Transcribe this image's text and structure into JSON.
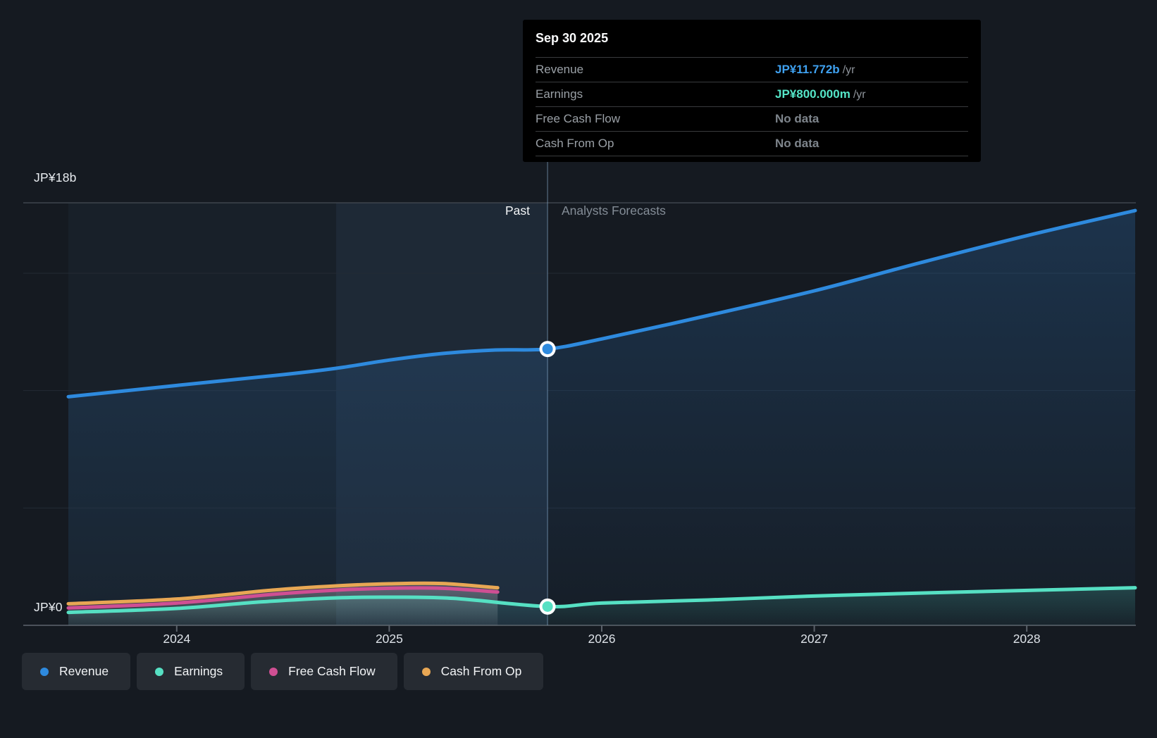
{
  "tooltip": {
    "date": "Sep 30 2025",
    "rows": [
      {
        "label": "Revenue",
        "value": "JP¥11.772b",
        "suffix": "/yr",
        "color": "#3fa1f0"
      },
      {
        "label": "Earnings",
        "value": "JP¥800.000m",
        "suffix": "/yr",
        "color": "#55e6c8"
      },
      {
        "label": "Free Cash Flow",
        "value": "No data",
        "suffix": "",
        "color": "#7e858c"
      },
      {
        "label": "Cash From Op",
        "value": "No data",
        "suffix": "",
        "color": "#7e858c"
      }
    ]
  },
  "axis": {
    "y_top_label": "JP¥18b",
    "y_zero_label": "JP¥0",
    "x_ticks": [
      "2024",
      "2025",
      "2026",
      "2027",
      "2028"
    ]
  },
  "labels": {
    "past": "Past",
    "forecast": "Analysts Forecasts"
  },
  "legend": [
    {
      "label": "Revenue",
      "color": "#2e8ade"
    },
    {
      "label": "Earnings",
      "color": "#56e0c3"
    },
    {
      "label": "Free Cash Flow",
      "color": "#cf4f93"
    },
    {
      "label": "Cash From Op",
      "color": "#e8a754"
    }
  ],
  "chart_data": {
    "type": "area",
    "title": "",
    "x_unit": "year",
    "x_range": [
      2023.49,
      2028.51
    ],
    "ylim": [
      0,
      18
    ],
    "y_currency": "JP¥b",
    "gridline_values": [
      18,
      15,
      10,
      5,
      0
    ],
    "x_tick_years": [
      2024,
      2025,
      2026,
      2027,
      2028
    ],
    "divider_x": 2025.745,
    "divider_date": "Sep 30 2025",
    "highlight_band": [
      2024.75,
      2025.745
    ],
    "legend_position": "bottom-left",
    "series": [
      {
        "name": "Cash From Op",
        "color": "#e8a754",
        "fill_top": "rgba(235,235,235,0.20)",
        "fill_bottom": "rgba(220,220,220,0.03)",
        "x": [
          2023.49,
          2024.0,
          2024.45,
          2024.75,
          2025.0,
          2025.25,
          2025.51
        ],
        "values": [
          0.92,
          1.12,
          1.5,
          1.68,
          1.77,
          1.78,
          1.6
        ]
      },
      {
        "name": "Free Cash Flow",
        "color": "#cf4f93",
        "fill_top": "rgba(235,210,220,0.16)",
        "fill_bottom": "rgba(220,220,220,0.03)",
        "x": [
          2023.49,
          2024.0,
          2024.45,
          2024.75,
          2025.0,
          2025.25,
          2025.51
        ],
        "values": [
          0.74,
          0.95,
          1.32,
          1.5,
          1.58,
          1.58,
          1.42
        ]
      },
      {
        "name": "Earnings",
        "color": "#56e0c3",
        "fill_top": "rgba(86,224,195,0.20)",
        "fill_bottom": "rgba(86,224,195,0.03)",
        "x": [
          2023.49,
          2024.0,
          2024.4,
          2024.75,
          2025.0,
          2025.3,
          2025.745,
          2026.0,
          2026.5,
          2027.0,
          2027.6,
          2028.51
        ],
        "values": [
          0.55,
          0.72,
          1.0,
          1.17,
          1.2,
          1.15,
          0.8,
          0.95,
          1.08,
          1.25,
          1.4,
          1.6
        ],
        "marker": {
          "x": 2025.745,
          "value": 0.8
        }
      },
      {
        "name": "Revenue",
        "color": "#2e8ade",
        "fill_top": "rgba(45,110,175,0.30)",
        "fill_bottom": "rgba(45,110,175,0.04)",
        "x": [
          2023.49,
          2024.0,
          2024.5,
          2024.75,
          2025.0,
          2025.25,
          2025.5,
          2025.745,
          2026.0,
          2026.5,
          2027.0,
          2027.5,
          2028.0,
          2028.51
        ],
        "values": [
          9.74,
          10.22,
          10.68,
          10.95,
          11.3,
          11.58,
          11.73,
          11.772,
          12.2,
          13.2,
          14.25,
          15.45,
          16.6,
          17.67
        ],
        "marker": {
          "x": 2025.745,
          "value": 11.772
        }
      }
    ]
  }
}
